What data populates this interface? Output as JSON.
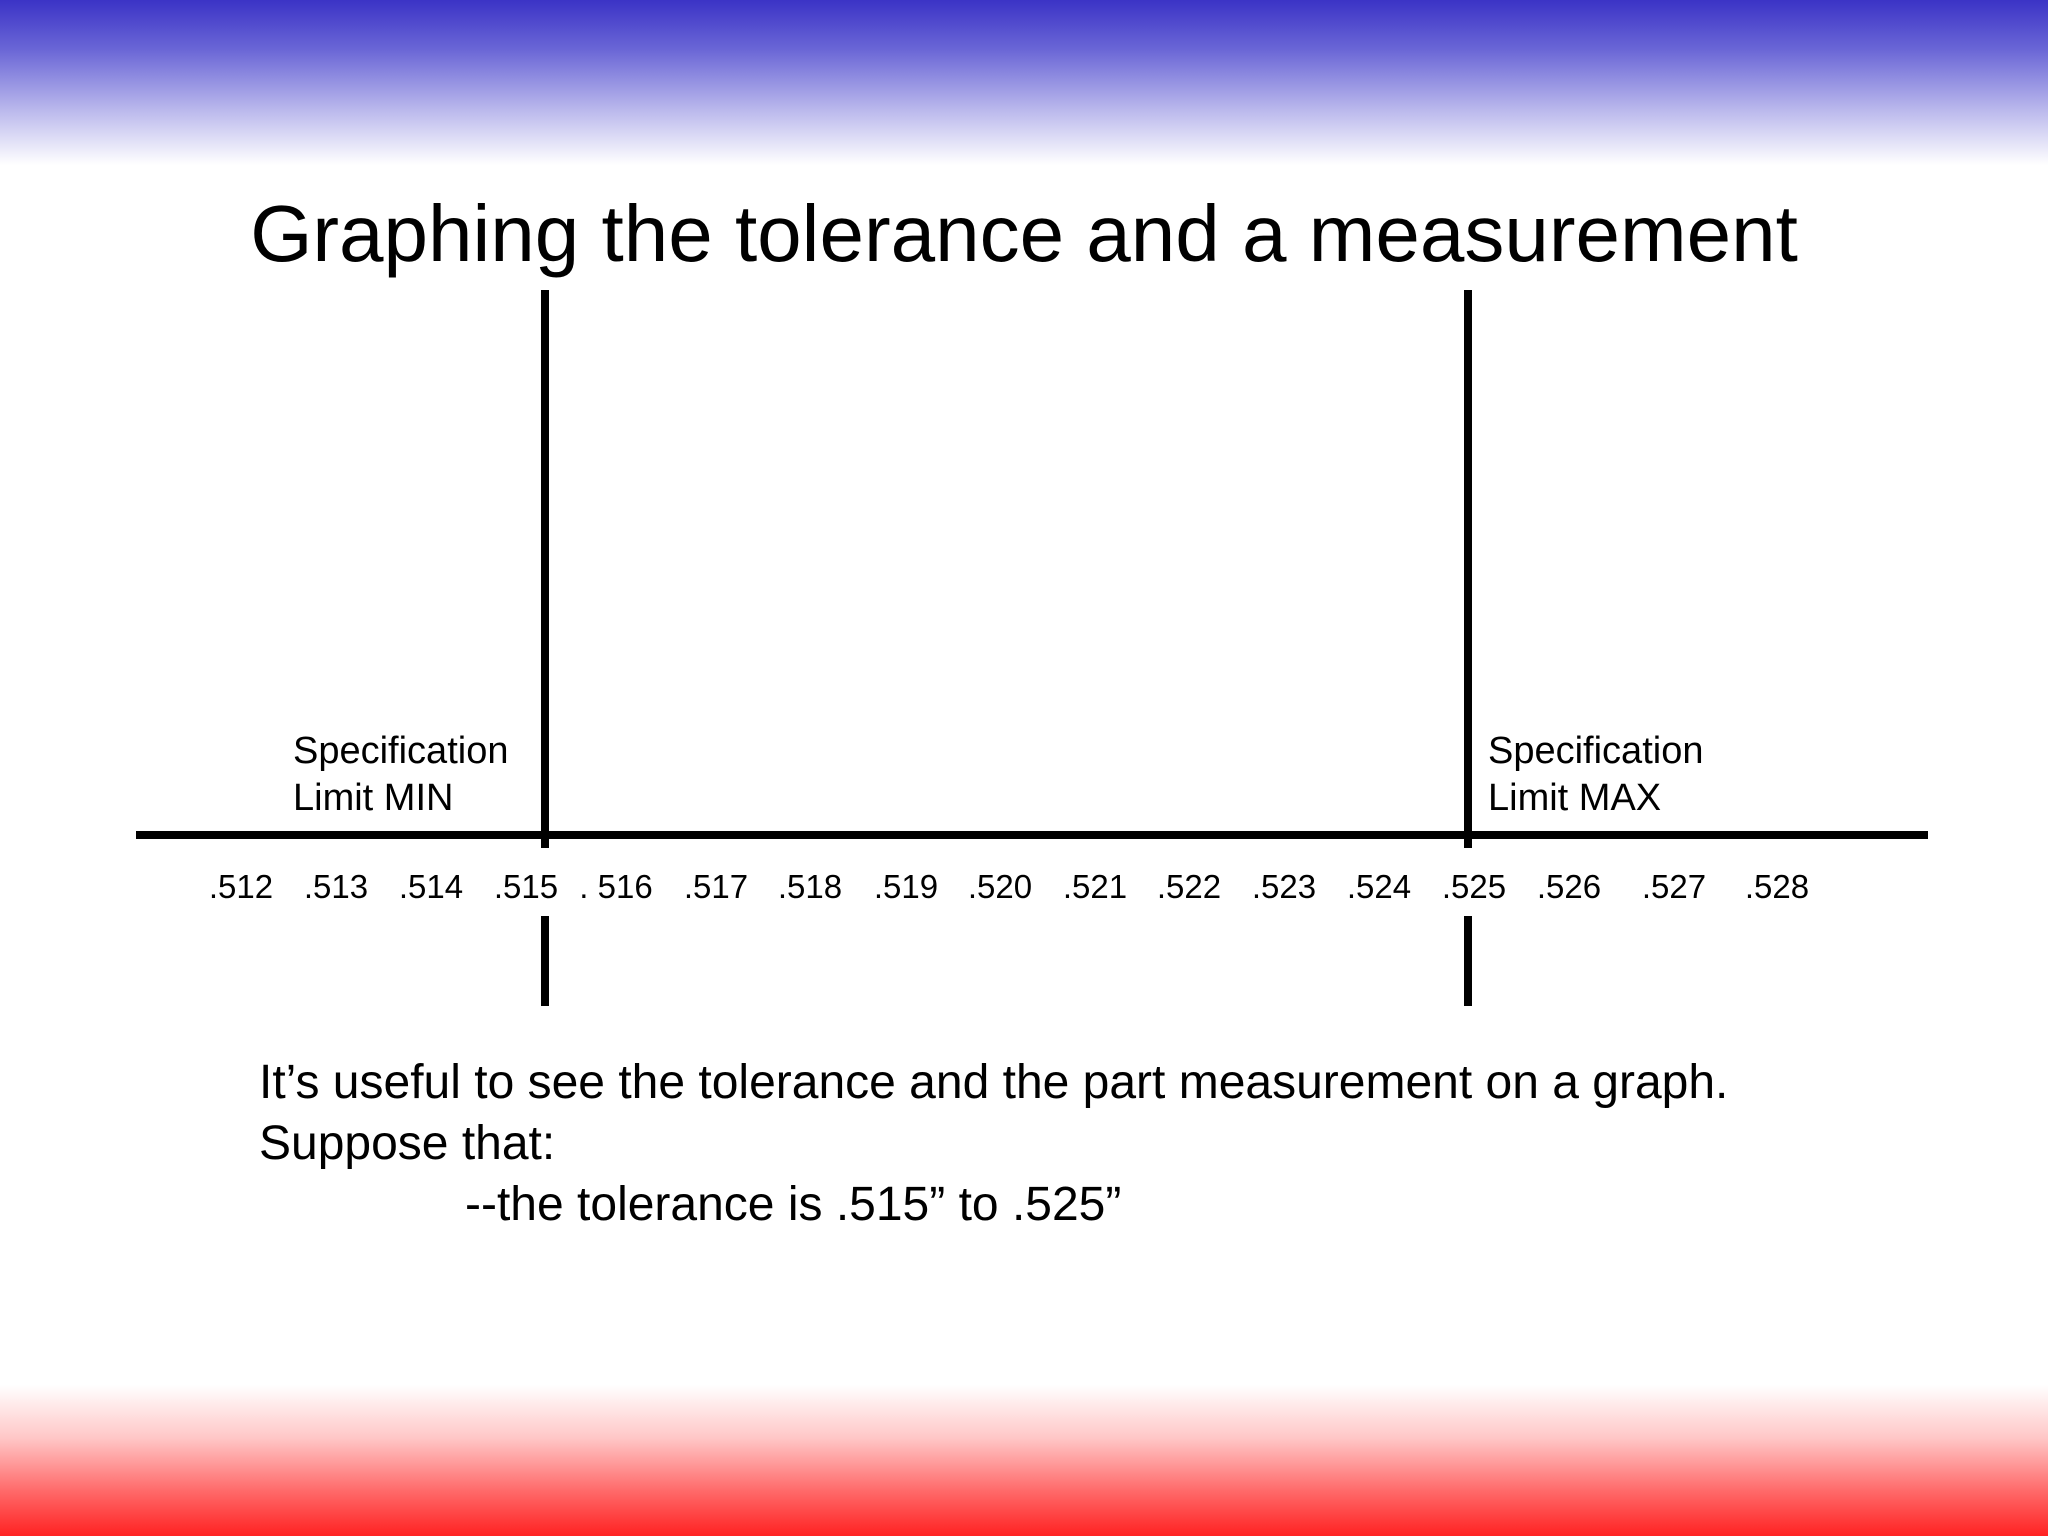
{
  "slide": {
    "title": "Graphing the tolerance and a measurement",
    "colors": {
      "top_band": "#3b33c6",
      "bottom_band": "#ff2222",
      "line": "#000000"
    }
  },
  "diagram": {
    "number_line": {
      "tick_labels": [
        ".512",
        ".513",
        ".514",
        ".515",
        ". 516",
        ".517",
        ".518",
        ".519",
        ".520",
        ".521",
        ".522",
        ".523",
        ".524",
        ".525",
        ".526",
        ".527",
        ".528"
      ],
      "values": [
        0.512,
        0.513,
        0.514,
        0.515,
        0.516,
        0.517,
        0.518,
        0.519,
        0.52,
        0.521,
        0.522,
        0.523,
        0.524,
        0.525,
        0.526,
        0.527,
        0.528
      ]
    },
    "spec_min": {
      "line1": "Specification",
      "line2": "Limit MIN",
      "value": 0.515
    },
    "spec_max": {
      "line1": "Specification",
      "line2": "Limit MAX",
      "value": 0.525
    }
  },
  "text": {
    "line1": "It’s useful to see the tolerance and the part measurement on a graph.",
    "line2": "Suppose that:",
    "line3": "--the tolerance is .515” to .525”"
  }
}
